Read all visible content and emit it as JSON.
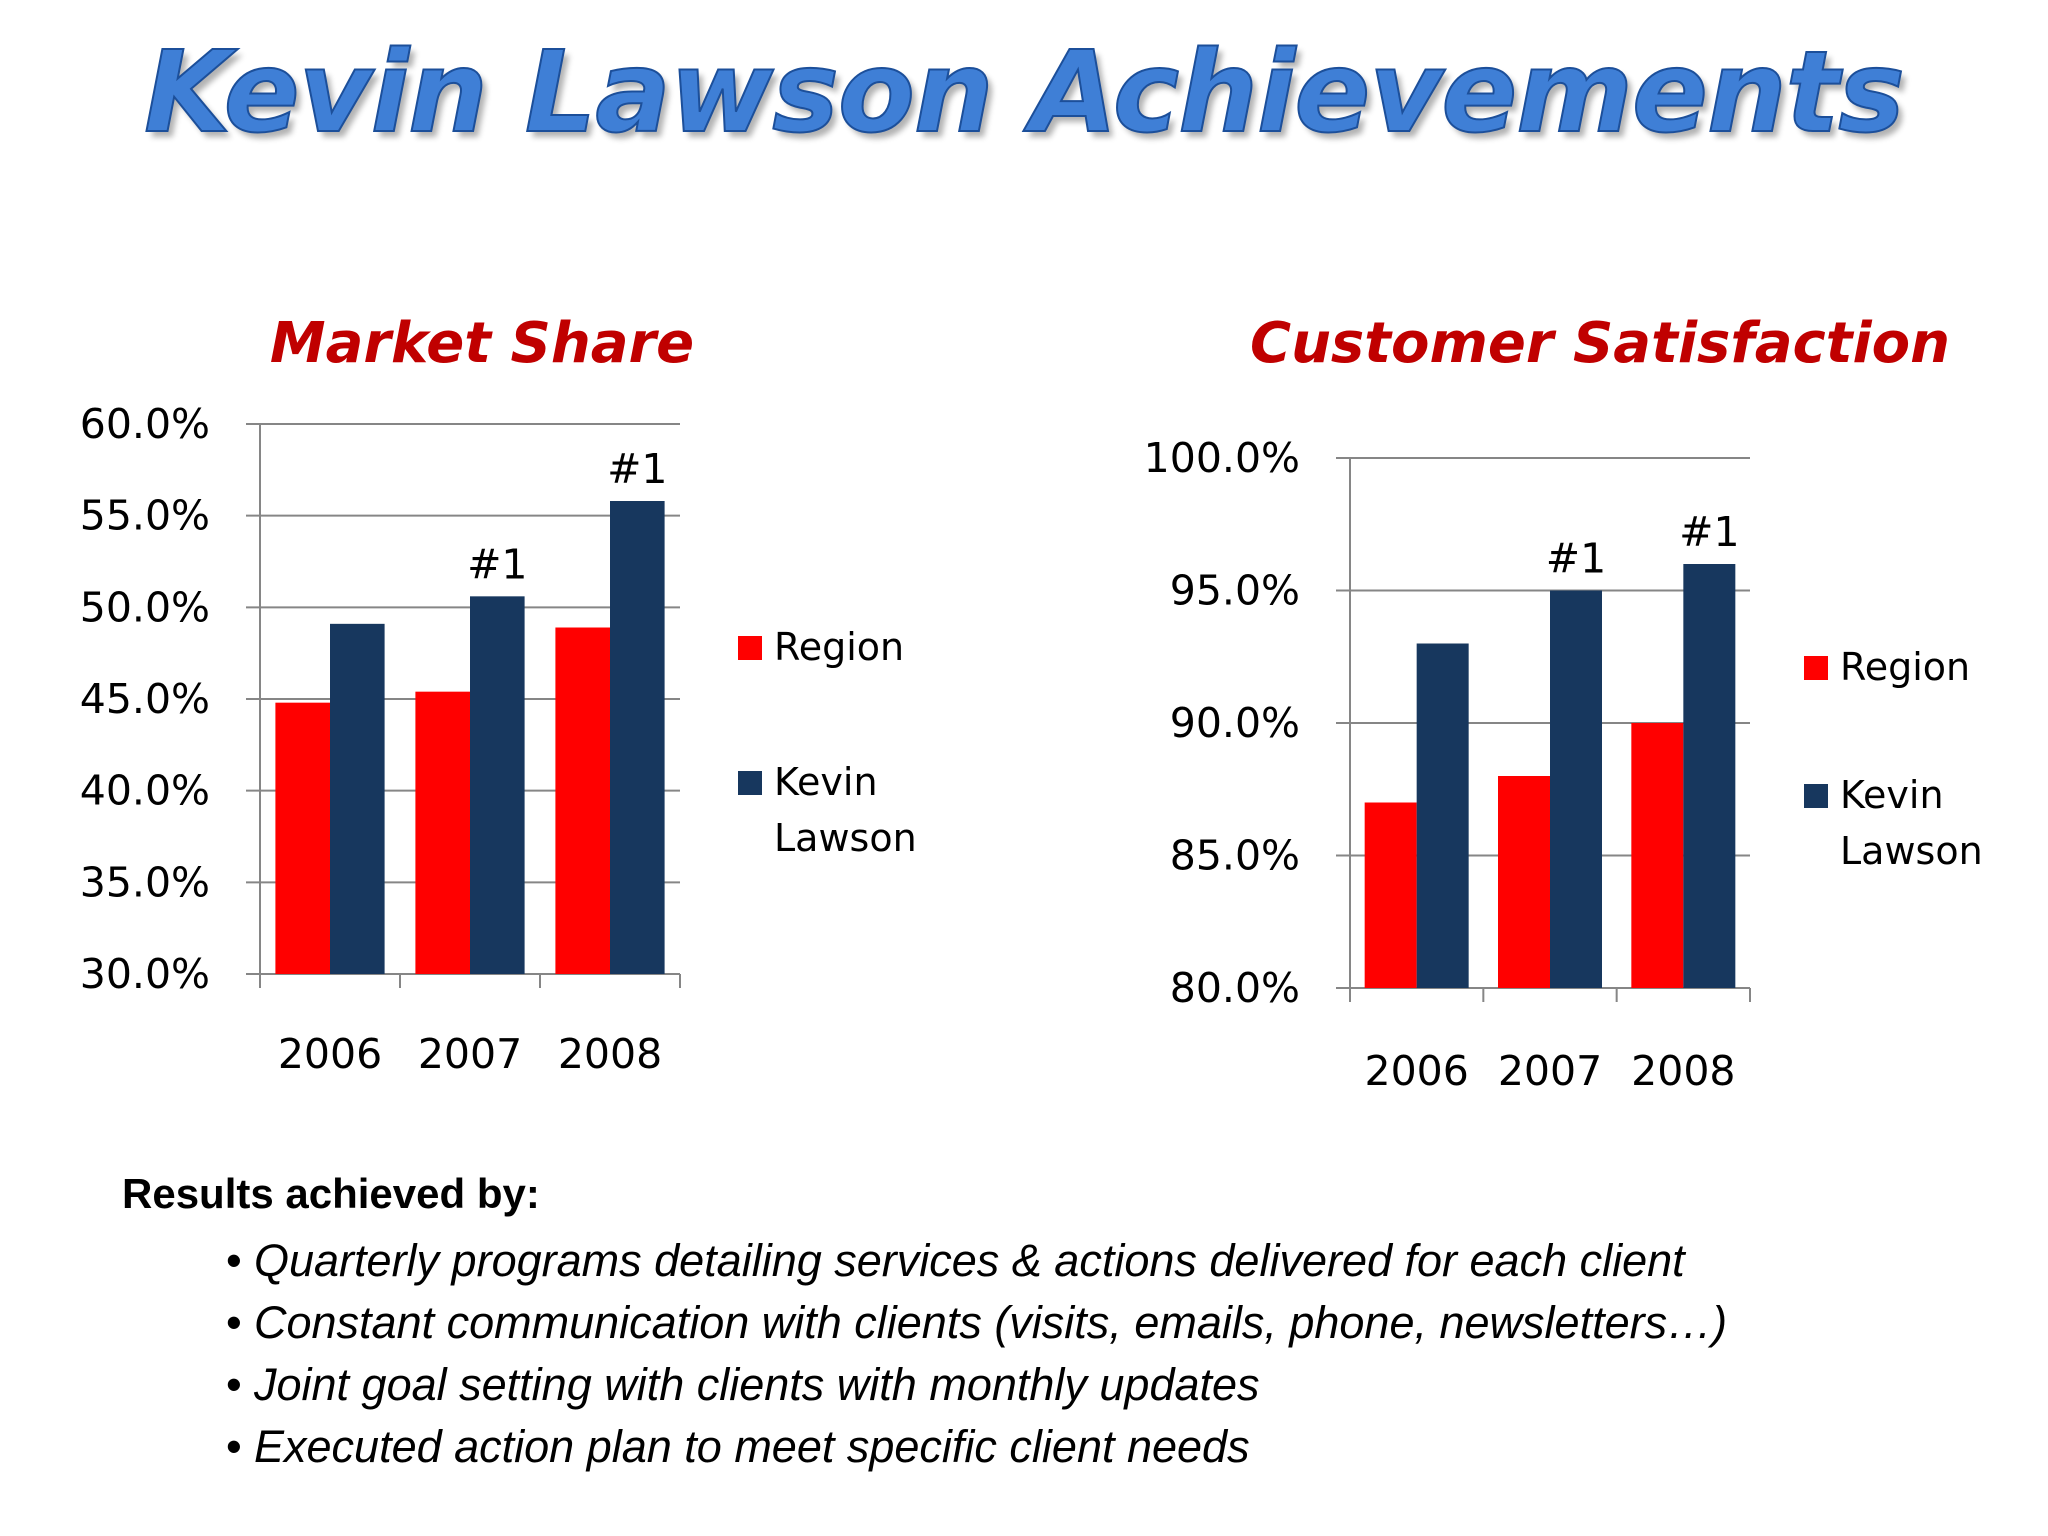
{
  "title": "Kevin Lawson Achievements",
  "colors": {
    "title": "#3f7fd6",
    "chart_title": "#c00000",
    "region": "#ff0000",
    "kevin": "#17375e"
  },
  "chart_data": [
    {
      "type": "bar",
      "title": "Market Share",
      "categories": [
        "2006",
        "2007",
        "2008"
      ],
      "series": [
        {
          "name": "Region",
          "values": [
            44.8,
            45.4,
            48.9
          ]
        },
        {
          "name": "Kevin Lawson",
          "values": [
            49.1,
            50.6,
            55.8
          ]
        }
      ],
      "ylim": [
        30.0,
        60.0
      ],
      "y_ticks": [
        "30.0%",
        "35.0%",
        "40.0%",
        "45.0%",
        "50.0%",
        "55.0%",
        "60.0%"
      ],
      "annotations": [
        {
          "category": "2007",
          "text": "#1"
        },
        {
          "category": "2008",
          "text": "#1"
        }
      ],
      "grid": true,
      "legend": "right"
    },
    {
      "type": "bar",
      "title": "Customer Satisfaction",
      "categories": [
        "2006",
        "2007",
        "2008"
      ],
      "series": [
        {
          "name": "Region",
          "values": [
            87.0,
            88.0,
            90.0
          ]
        },
        {
          "name": "Kevin Lawson",
          "values": [
            93.0,
            95.0,
            96.0
          ]
        }
      ],
      "ylim": [
        80.0,
        100.0
      ],
      "y_ticks": [
        "80.0%",
        "85.0%",
        "90.0%",
        "95.0%",
        "100.0%"
      ],
      "annotations": [
        {
          "category": "2007",
          "text": "#1"
        },
        {
          "category": "2008",
          "text": "#1"
        }
      ],
      "grid": true,
      "legend": "right"
    }
  ],
  "notes": {
    "heading": "Results achieved by:",
    "bullet": "•",
    "items": [
      "Quarterly programs detailing services & actions delivered for each client",
      "Constant communication with clients (visits, emails, phone, newsletters…)",
      "Joint goal setting with clients with monthly updates",
      "Executed action plan to meet specific client needs"
    ]
  }
}
